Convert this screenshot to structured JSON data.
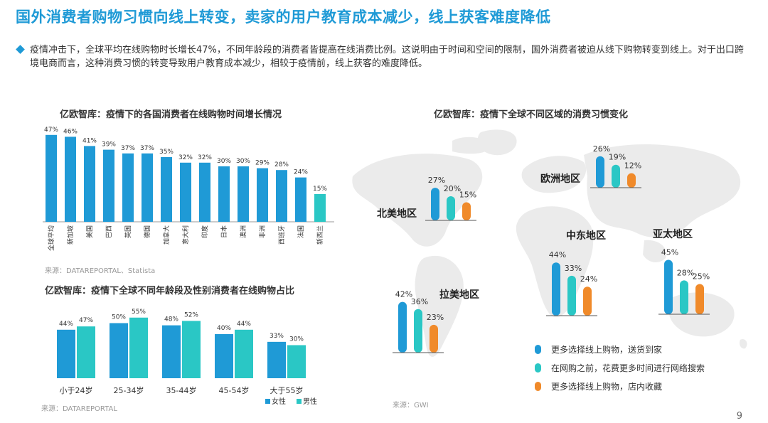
{
  "page": {
    "title": "国外消费者购物习惯向线上转变，卖家的用户教育成本减少，线上获客难度降低",
    "intro": "疫情冲击下，全球平均在线购物时长增长47%，不同年龄段的消费者皆提高在线消费比例。这说明由于时间和空间的限制，国外消费者被迫从线下购物转变到线上。对于出口跨境电商而言，这种消费习惯的转变导致用户教育成本减少，相较于疫情前，线上获客的难度降低。",
    "page_number": "9"
  },
  "colors": {
    "accent": "#1f9ad6",
    "teal": "#2ac7c5",
    "orange": "#f08a2a",
    "map": "#ebebeb"
  },
  "charts": {
    "countries": {
      "title": "亿欧智库：疫情下的各国消费者在线购物时间增长情况",
      "source": "来源：DATAREPORTAL、Statista"
    },
    "age": {
      "title": "亿欧智库：疫情下全球不同年龄段及性别消费者在线购物占比",
      "source": "来源：DATAREPORTAL"
    },
    "regions": {
      "title": "亿欧智库：疫情下全球不同区域的消费习惯变化",
      "source": "来源：GWI"
    }
  },
  "chart_data": [
    {
      "type": "bar",
      "categories": [
        "全球平均",
        "新加坡",
        "美国",
        "巴西",
        "英国",
        "德国",
        "加拿大",
        "意大利",
        "印度",
        "日本",
        "澳洲",
        "非洲",
        "西班牙",
        "法国",
        "新西兰"
      ],
      "values": [
        47,
        46,
        41,
        39,
        37,
        37,
        35,
        32,
        32,
        30,
        30,
        29,
        28,
        24,
        15
      ],
      "value_format": "percent",
      "highlight_last": true
    },
    {
      "type": "bar",
      "categories": [
        "小于24岁",
        "25-34岁",
        "35-44岁",
        "45-54岁",
        "大于55岁"
      ],
      "series": [
        {
          "name": "女性",
          "values": [
            44,
            50,
            48,
            40,
            33
          ],
          "color": "#1f9ad6"
        },
        {
          "name": "男性",
          "values": [
            47,
            55,
            52,
            44,
            30
          ],
          "color": "#2ac7c5"
        }
      ],
      "value_format": "percent",
      "legend": "bottom-right"
    },
    {
      "type": "bar",
      "regions": [
        {
          "name": "北美地区",
          "values": [
            27,
            20,
            15
          ]
        },
        {
          "name": "欧洲地区",
          "values": [
            26,
            19,
            12
          ]
        },
        {
          "name": "中东地区",
          "values": [
            44,
            33,
            24
          ]
        },
        {
          "name": "亚太地区",
          "values": [
            45,
            28,
            25
          ]
        },
        {
          "name": "拉美地区",
          "values": [
            42,
            36,
            23
          ]
        }
      ],
      "series": [
        {
          "name": "更多选择线上购物，送货到家",
          "color": "#1f9ad6"
        },
        {
          "name": "在网购之前，花费更多时间进行网络搜索",
          "color": "#2ac7c5"
        },
        {
          "name": "更多选择线上购物，店内收藏",
          "color": "#f08a2a"
        }
      ],
      "value_format": "percent",
      "legend": "bottom-right"
    }
  ]
}
